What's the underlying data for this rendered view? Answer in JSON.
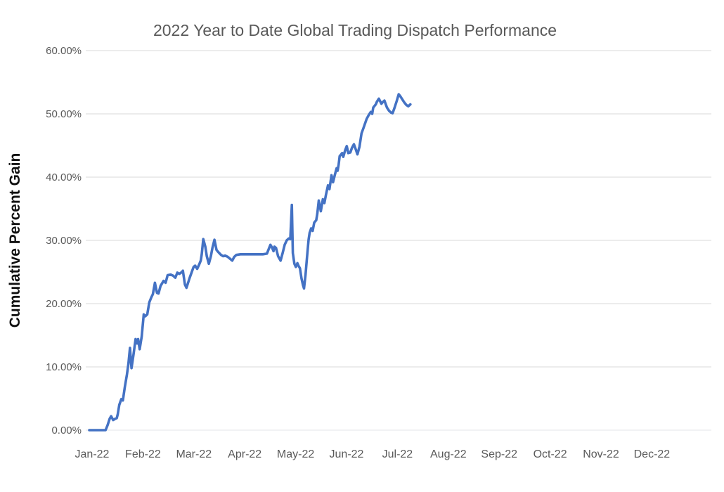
{
  "chart": {
    "title": "2022 Year to Date Global Trading Dispatch Performance",
    "y_axis_title": "Cumulative Percent Gain"
  },
  "chart_data": {
    "type": "line",
    "title": "2022 Year to Date Global Trading Dispatch Performance",
    "xlabel": "",
    "ylabel": "Cumulative Percent Gain",
    "x_unit": "months since Jan-22 tick (0 = Jan-22, 1 = Feb-22, ...)",
    "xlim": [
      0,
      12
    ],
    "ylim": [
      0,
      60
    ],
    "grid": true,
    "legend_position": "none",
    "line_color": "#4472C4",
    "text_color": "#595959",
    "gridline_color": "#D9D9D9",
    "x_ticks": [
      {
        "m": 0,
        "label": "Jan-22"
      },
      {
        "m": 1,
        "label": "Feb-22"
      },
      {
        "m": 2,
        "label": "Mar-22"
      },
      {
        "m": 3,
        "label": "Apr-22"
      },
      {
        "m": 4,
        "label": "May-22"
      },
      {
        "m": 5,
        "label": "Jun-22"
      },
      {
        "m": 6,
        "label": "Jul-22"
      },
      {
        "m": 7,
        "label": "Aug-22"
      },
      {
        "m": 8,
        "label": "Sep-22"
      },
      {
        "m": 9,
        "label": "Oct-22"
      },
      {
        "m": 10,
        "label": "Nov-22"
      },
      {
        "m": 11,
        "label": "Dec-22"
      }
    ],
    "y_ticks": [
      {
        "v": 0,
        "label": "0.00%"
      },
      {
        "v": 10,
        "label": "10.00%"
      },
      {
        "v": 20,
        "label": "20.00%"
      },
      {
        "v": 30,
        "label": "30.00%"
      },
      {
        "v": 40,
        "label": "40.00%"
      },
      {
        "v": 50,
        "label": "50.00%"
      },
      {
        "v": 60,
        "label": "60.00%"
      }
    ],
    "series": [
      {
        "name": "Cumulative Percent Gain",
        "points": [
          [
            0.0,
            0.0
          ],
          [
            0.32,
            0.0
          ],
          [
            0.36,
            0.8
          ],
          [
            0.4,
            1.8
          ],
          [
            0.43,
            2.2
          ],
          [
            0.47,
            1.6
          ],
          [
            0.51,
            1.8
          ],
          [
            0.54,
            1.9
          ],
          [
            0.56,
            2.5
          ],
          [
            0.59,
            4.0
          ],
          [
            0.63,
            4.9
          ],
          [
            0.66,
            4.7
          ],
          [
            0.7,
            6.9
          ],
          [
            0.74,
            8.8
          ],
          [
            0.77,
            10.5
          ],
          [
            0.8,
            13.0
          ],
          [
            0.83,
            9.8
          ],
          [
            0.87,
            12.0
          ],
          [
            0.91,
            14.4
          ],
          [
            0.94,
            13.7
          ],
          [
            0.96,
            14.4
          ],
          [
            0.99,
            12.8
          ],
          [
            1.03,
            14.8
          ],
          [
            1.07,
            18.3
          ],
          [
            1.1,
            18.0
          ],
          [
            1.14,
            18.3
          ],
          [
            1.18,
            20.2
          ],
          [
            1.22,
            21.0
          ],
          [
            1.25,
            21.5
          ],
          [
            1.29,
            23.3
          ],
          [
            1.33,
            21.7
          ],
          [
            1.36,
            21.6
          ],
          [
            1.4,
            22.8
          ],
          [
            1.46,
            23.6
          ],
          [
            1.5,
            23.3
          ],
          [
            1.54,
            24.5
          ],
          [
            1.6,
            24.6
          ],
          [
            1.65,
            24.4
          ],
          [
            1.69,
            24.1
          ],
          [
            1.73,
            24.9
          ],
          [
            1.77,
            24.7
          ],
          [
            1.82,
            25.0
          ],
          [
            1.84,
            25.2
          ],
          [
            1.88,
            23.0
          ],
          [
            1.91,
            22.5
          ],
          [
            1.97,
            24.0
          ],
          [
            2.01,
            24.9
          ],
          [
            2.05,
            25.8
          ],
          [
            2.08,
            26.0
          ],
          [
            2.12,
            25.5
          ],
          [
            2.16,
            26.2
          ],
          [
            2.19,
            26.8
          ],
          [
            2.21,
            27.8
          ],
          [
            2.24,
            30.2
          ],
          [
            2.28,
            29.0
          ],
          [
            2.31,
            27.5
          ],
          [
            2.35,
            26.3
          ],
          [
            2.39,
            27.5
          ],
          [
            2.42,
            28.8
          ],
          [
            2.46,
            30.1
          ],
          [
            2.5,
            28.5
          ],
          [
            2.53,
            28.2
          ],
          [
            2.59,
            27.7
          ],
          [
            2.63,
            27.5
          ],
          [
            2.67,
            27.6
          ],
          [
            2.72,
            27.4
          ],
          [
            2.78,
            27.0
          ],
          [
            2.81,
            26.8
          ],
          [
            2.85,
            27.4
          ],
          [
            2.89,
            27.7
          ],
          [
            2.97,
            27.8
          ],
          [
            3.08,
            27.8
          ],
          [
            3.19,
            27.8
          ],
          [
            3.3,
            27.8
          ],
          [
            3.41,
            27.8
          ],
          [
            3.49,
            27.9
          ],
          [
            3.56,
            29.3
          ],
          [
            3.59,
            28.9
          ],
          [
            3.62,
            28.3
          ],
          [
            3.64,
            29.0
          ],
          [
            3.67,
            28.8
          ],
          [
            3.71,
            27.5
          ],
          [
            3.76,
            26.8
          ],
          [
            3.8,
            28.0
          ],
          [
            3.84,
            29.3
          ],
          [
            3.88,
            30.0
          ],
          [
            3.92,
            30.3
          ],
          [
            3.95,
            30.2
          ],
          [
            3.98,
            35.6
          ],
          [
            4.0,
            28.0
          ],
          [
            4.03,
            26.3
          ],
          [
            4.06,
            25.8
          ],
          [
            4.09,
            26.4
          ],
          [
            4.11,
            26.0
          ],
          [
            4.14,
            25.6
          ],
          [
            4.17,
            24.0
          ],
          [
            4.2,
            22.9
          ],
          [
            4.22,
            22.4
          ],
          [
            4.25,
            24.6
          ],
          [
            4.28,
            27.5
          ],
          [
            4.31,
            30.1
          ],
          [
            4.33,
            31.2
          ],
          [
            4.36,
            31.9
          ],
          [
            4.39,
            31.5
          ],
          [
            4.42,
            32.8
          ],
          [
            4.46,
            33.2
          ],
          [
            4.48,
            34.2
          ],
          [
            4.51,
            36.3
          ],
          [
            4.55,
            34.6
          ],
          [
            4.59,
            36.5
          ],
          [
            4.62,
            35.9
          ],
          [
            4.65,
            37.2
          ],
          [
            4.69,
            38.7
          ],
          [
            4.72,
            38.1
          ],
          [
            4.76,
            40.3
          ],
          [
            4.79,
            39.2
          ],
          [
            4.83,
            40.5
          ],
          [
            4.86,
            41.4
          ],
          [
            4.88,
            41.0
          ],
          [
            4.9,
            42.0
          ],
          [
            4.92,
            43.3
          ],
          [
            4.97,
            43.8
          ],
          [
            4.99,
            43.2
          ],
          [
            5.03,
            44.3
          ],
          [
            5.06,
            44.9
          ],
          [
            5.09,
            43.8
          ],
          [
            5.13,
            43.9
          ],
          [
            5.16,
            44.6
          ],
          [
            5.2,
            45.2
          ],
          [
            5.24,
            44.3
          ],
          [
            5.27,
            43.6
          ],
          [
            5.31,
            44.8
          ],
          [
            5.35,
            46.9
          ],
          [
            5.39,
            47.8
          ],
          [
            5.42,
            48.5
          ],
          [
            5.45,
            49.2
          ],
          [
            5.49,
            49.8
          ],
          [
            5.53,
            50.3
          ],
          [
            5.56,
            50.0
          ],
          [
            5.58,
            51.0
          ],
          [
            5.63,
            51.5
          ],
          [
            5.65,
            51.9
          ],
          [
            5.69,
            52.4
          ],
          [
            5.74,
            51.6
          ],
          [
            5.76,
            51.8
          ],
          [
            5.8,
            52.1
          ],
          [
            5.85,
            51.0
          ],
          [
            5.89,
            50.5
          ],
          [
            5.93,
            50.2
          ],
          [
            5.96,
            50.1
          ],
          [
            6.0,
            51.0
          ],
          [
            6.04,
            52.0
          ],
          [
            6.08,
            53.1
          ],
          [
            6.11,
            52.8
          ],
          [
            6.15,
            52.3
          ],
          [
            6.19,
            51.8
          ],
          [
            6.23,
            51.4
          ],
          [
            6.27,
            51.2
          ],
          [
            6.31,
            51.5
          ]
        ]
      }
    ]
  }
}
